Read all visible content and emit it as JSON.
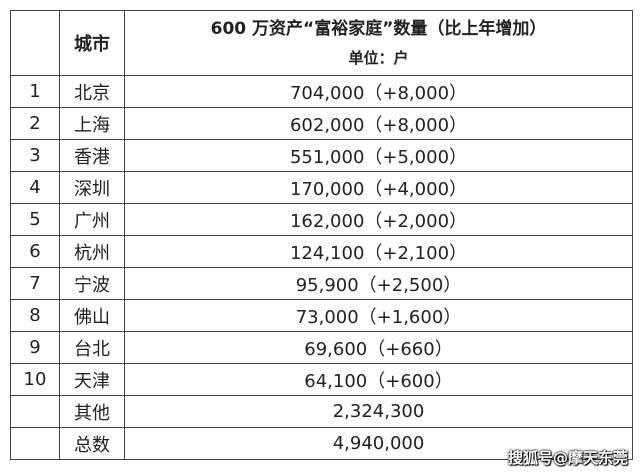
{
  "header": {
    "city": "城市",
    "title": "600 万资产“富裕家庭”数量（比上年增加）",
    "unit": "单位：户"
  },
  "rows": [
    {
      "rank": "1",
      "city": "北京",
      "value": "704,000（+8,000）"
    },
    {
      "rank": "2",
      "city": "上海",
      "value": "602,000（+8,000）"
    },
    {
      "rank": "3",
      "city": "香港",
      "value": "551,000（+5,000）"
    },
    {
      "rank": "4",
      "city": "深圳",
      "value": "170,000（+4,000）"
    },
    {
      "rank": "5",
      "city": "广州",
      "value": "162,000（+2,000）"
    },
    {
      "rank": "6",
      "city": "杭州",
      "value": "124,100（+2,100）"
    },
    {
      "rank": "7",
      "city": "宁波",
      "value": "95,900（+2,500）"
    },
    {
      "rank": "8",
      "city": "佛山",
      "value": "73,000（+1,600）"
    },
    {
      "rank": "9",
      "city": "台北",
      "value": "69,600（+660）"
    },
    {
      "rank": "10",
      "city": "天津",
      "value": "64,100（+600）"
    },
    {
      "rank": "",
      "city": "其他",
      "value": "2,324,300"
    },
    {
      "rank": "",
      "city": "总数",
      "value": "4,940,000"
    }
  ],
  "watermark": "搜狐号@摩天东莞"
}
